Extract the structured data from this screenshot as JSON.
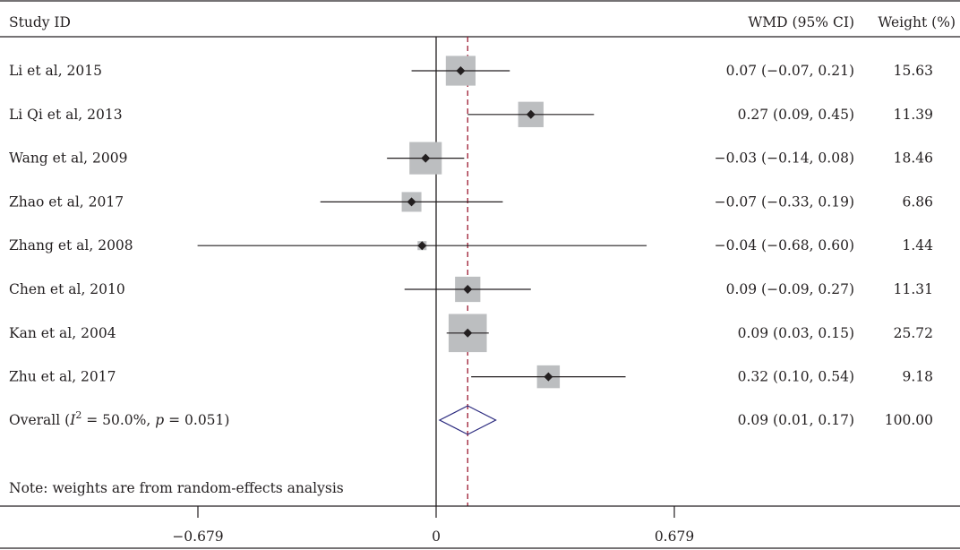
{
  "chart_data": {
    "type": "forest",
    "headers": {
      "study": "Study ID",
      "effect": "WMD (95% CI)",
      "weight": "Weight (%)"
    },
    "studies": [
      {
        "label": "Li et al, 2015",
        "est": 0.07,
        "lo": -0.07,
        "hi": 0.21,
        "ci_text": "0.07 (−0.07, 0.21)",
        "weight": 15.63,
        "weight_text": "15.63"
      },
      {
        "label": "Li Qi et al, 2013",
        "est": 0.27,
        "lo": 0.09,
        "hi": 0.45,
        "ci_text": "0.27 (0.09, 0.45)",
        "weight": 11.39,
        "weight_text": "11.39"
      },
      {
        "label": "Wang et al, 2009",
        "est": -0.03,
        "lo": -0.14,
        "hi": 0.08,
        "ci_text": "−0.03 (−0.14, 0.08)",
        "weight": 18.46,
        "weight_text": "18.46"
      },
      {
        "label": "Zhao et al, 2017",
        "est": -0.07,
        "lo": -0.33,
        "hi": 0.19,
        "ci_text": "−0.07 (−0.33, 0.19)",
        "weight": 6.86,
        "weight_text": "6.86"
      },
      {
        "label": "Zhang et al, 2008",
        "est": -0.04,
        "lo": -0.68,
        "hi": 0.6,
        "ci_text": "−0.04 (−0.68, 0.60)",
        "weight": 1.44,
        "weight_text": "1.44"
      },
      {
        "label": "Chen et al, 2010",
        "est": 0.09,
        "lo": -0.09,
        "hi": 0.27,
        "ci_text": "0.09 (−0.09, 0.27)",
        "weight": 11.31,
        "weight_text": "11.31"
      },
      {
        "label": "Kan et al, 2004",
        "est": 0.09,
        "lo": 0.03,
        "hi": 0.15,
        "ci_text": "0.09 (0.03, 0.15)",
        "weight": 25.72,
        "weight_text": "25.72"
      },
      {
        "label": "Zhu et al, 2017",
        "est": 0.32,
        "lo": 0.1,
        "hi": 0.54,
        "ci_text": "0.32 (0.10, 0.54)",
        "weight": 9.18,
        "weight_text": "9.18"
      }
    ],
    "overall": {
      "label_prefix": "Overall (",
      "i2_symbol": "I",
      "i2_sup": "2",
      "i2_value": " = 50.0%, ",
      "p_symbol": "p",
      "p_value": " = 0.051)",
      "est": 0.09,
      "lo": 0.01,
      "hi": 0.17,
      "ci_text": "0.09 (0.01, 0.17)",
      "weight_text": "100.00"
    },
    "note": "Note: weights are from random-effects analysis",
    "x_ticks": [
      {
        "value": -0.679,
        "label": "−0.679"
      },
      {
        "value": 0,
        "label": "0"
      },
      {
        "value": 0.679,
        "label": "0.679"
      }
    ],
    "xlim": [
      -0.679,
      0.679
    ],
    "colors": {
      "box": "#bcbec0",
      "point": "#231f20",
      "line": "#231f20",
      "overall_diamond": "#2b2a7f",
      "dashed_line": "#9e1b32"
    }
  }
}
